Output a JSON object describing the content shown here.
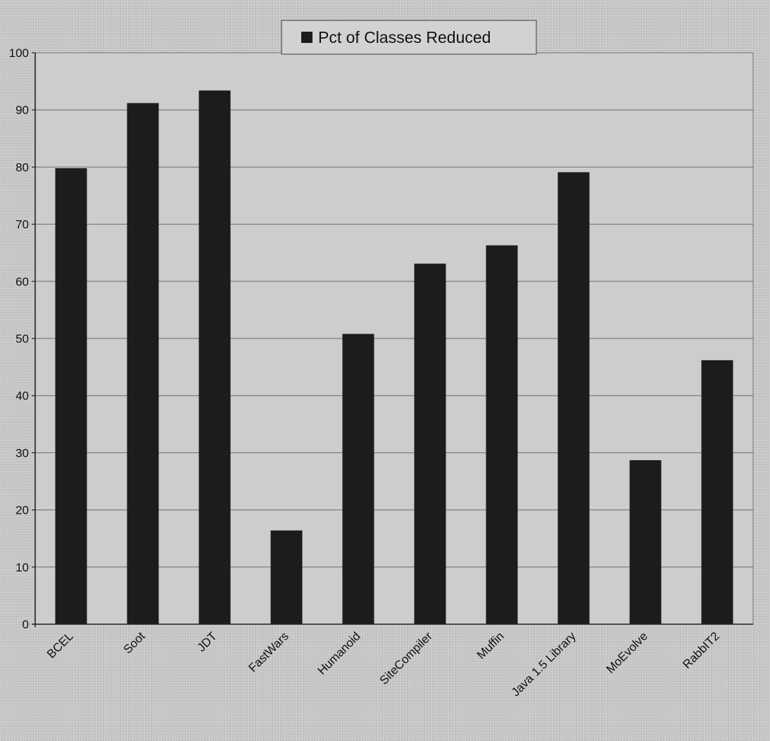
{
  "chart_data": {
    "type": "bar",
    "categories": [
      "BCEL",
      "Soot",
      "JDT",
      "FastWars",
      "Humanoid",
      "SiteCompiler",
      "Muffin",
      "Java 1.5 Library",
      "MoEvolve",
      "RabbIT2"
    ],
    "series": [
      {
        "name": "Pct of Classes Reduced",
        "values": [
          79.8,
          91.2,
          93.4,
          16.4,
          50.8,
          63.1,
          66.3,
          79.1,
          28.7,
          46.2
        ]
      }
    ],
    "title": "",
    "xlabel": "",
    "ylabel": "",
    "ylim": [
      0,
      100
    ],
    "yticks": [
      "0",
      "10",
      "20",
      "30",
      "40",
      "50",
      "60",
      "70",
      "80",
      "90",
      "100"
    ],
    "grid": true,
    "legend_position": "top-center",
    "colors": {
      "bar": "#1c1c1c",
      "grid": "#6b6b6b",
      "axis": "#222222",
      "plot_background": "#cfcfcf"
    }
  }
}
